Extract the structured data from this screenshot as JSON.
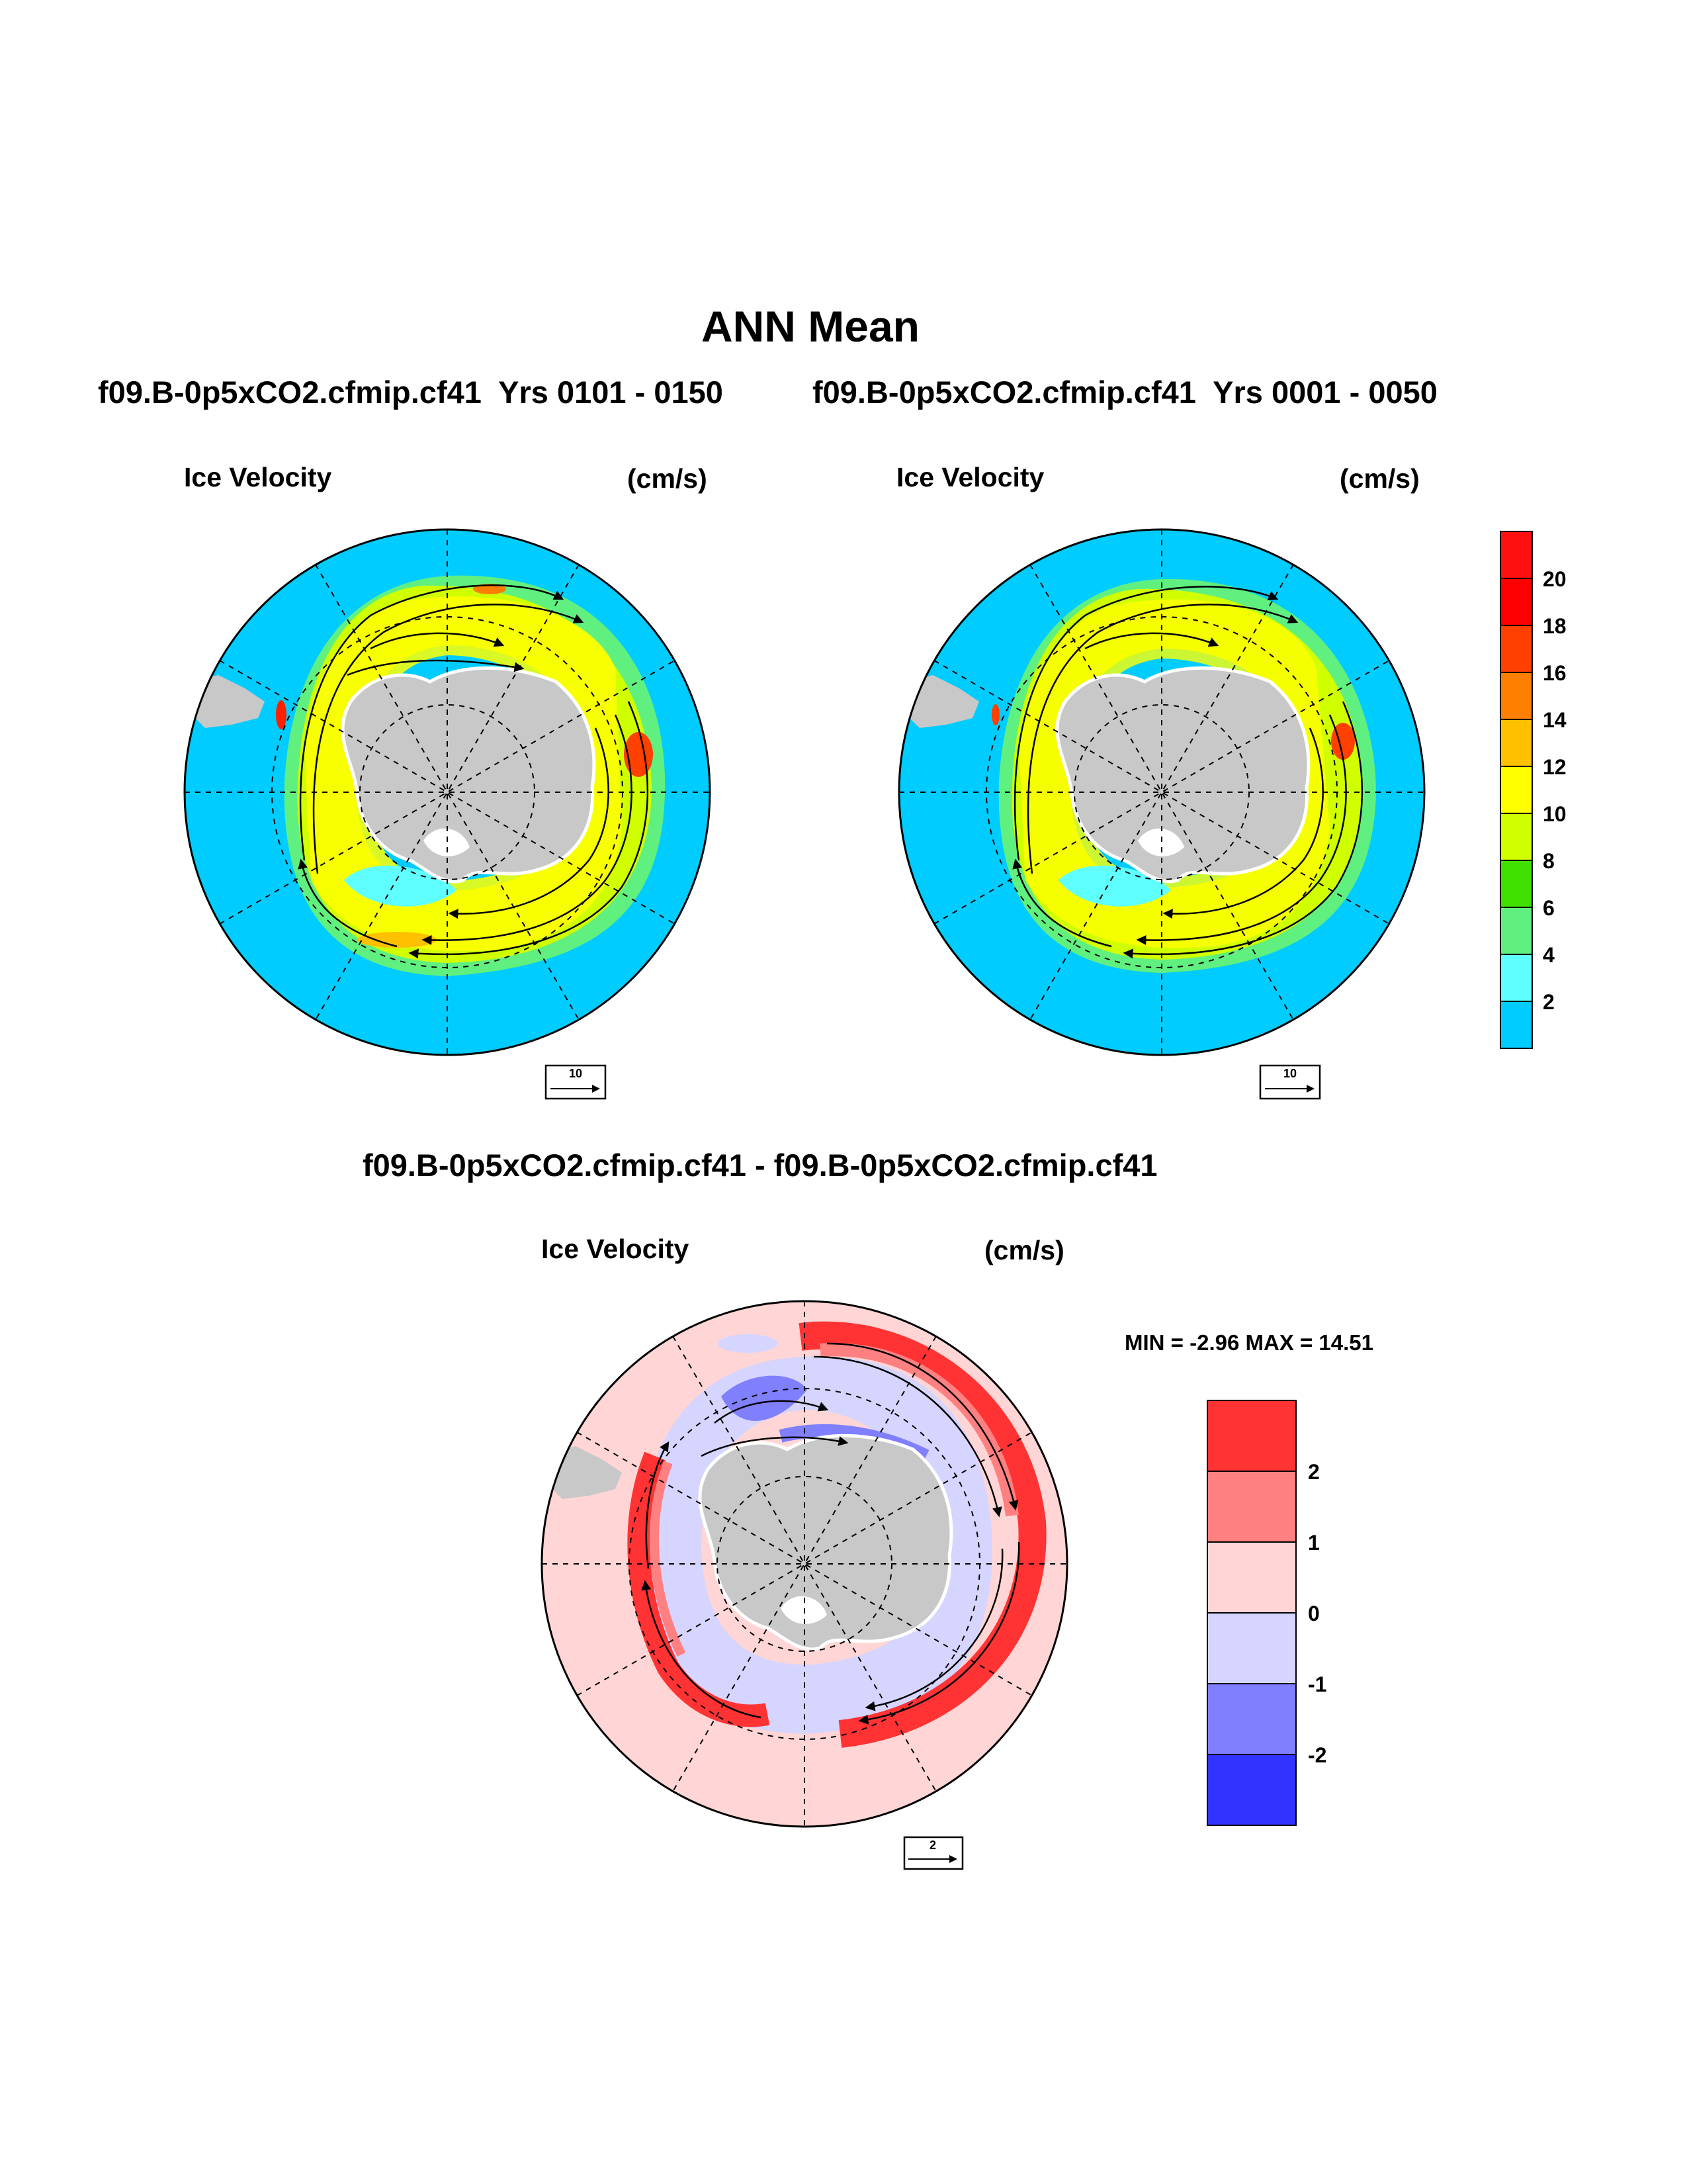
{
  "title": "ANN Mean",
  "top_left_case": "f09.B-0p5xCO2.cfmip.cf41",
  "top_left_years": "Yrs 0101 - 0150",
  "top_right_case": "f09.B-0p5xCO2.cfmip.cf41",
  "top_right_years": "Yrs 0001 - 0050",
  "diff_title": "f09.B-0p5xCO2.cfmip.cf41 - f09.B-0p5xCO2.cfmip.cf41",
  "panels": {
    "left": {
      "variable": "Ice Velocity",
      "units": "(cm/s)",
      "ref_vector": "10"
    },
    "right": {
      "variable": "Ice Velocity",
      "units": "(cm/s)",
      "ref_vector": "10"
    },
    "diff": {
      "variable": "Ice Velocity",
      "units": "(cm/s)",
      "ref_vector": "2"
    }
  },
  "diff_stats": "MIN =  -2.96 MAX =  14.51",
  "colorbar_main": {
    "labels": [
      "20",
      "18",
      "16",
      "14",
      "12",
      "10",
      "8",
      "6",
      "4",
      "2"
    ],
    "colors": [
      "#ff0000",
      "#ff4000",
      "#ff8000",
      "#ffc000",
      "#ffff00",
      "#d0ff00",
      "#40e000",
      "#60f080",
      "#60ffff",
      "#00ccff"
    ],
    "top_color": "#ff1010"
  },
  "colorbar_diff": {
    "labels": [
      "2",
      "1",
      "0",
      "-1",
      "-2"
    ],
    "colors": [
      "#ff3333",
      "#ff8080",
      "#ffd5d5",
      "#d5d5ff",
      "#8080ff",
      "#3333ff"
    ]
  },
  "map_colors": {
    "ocean": "#00ccff",
    "land": "#c8c8c8",
    "diff_background": "#ffd5d5"
  }
}
